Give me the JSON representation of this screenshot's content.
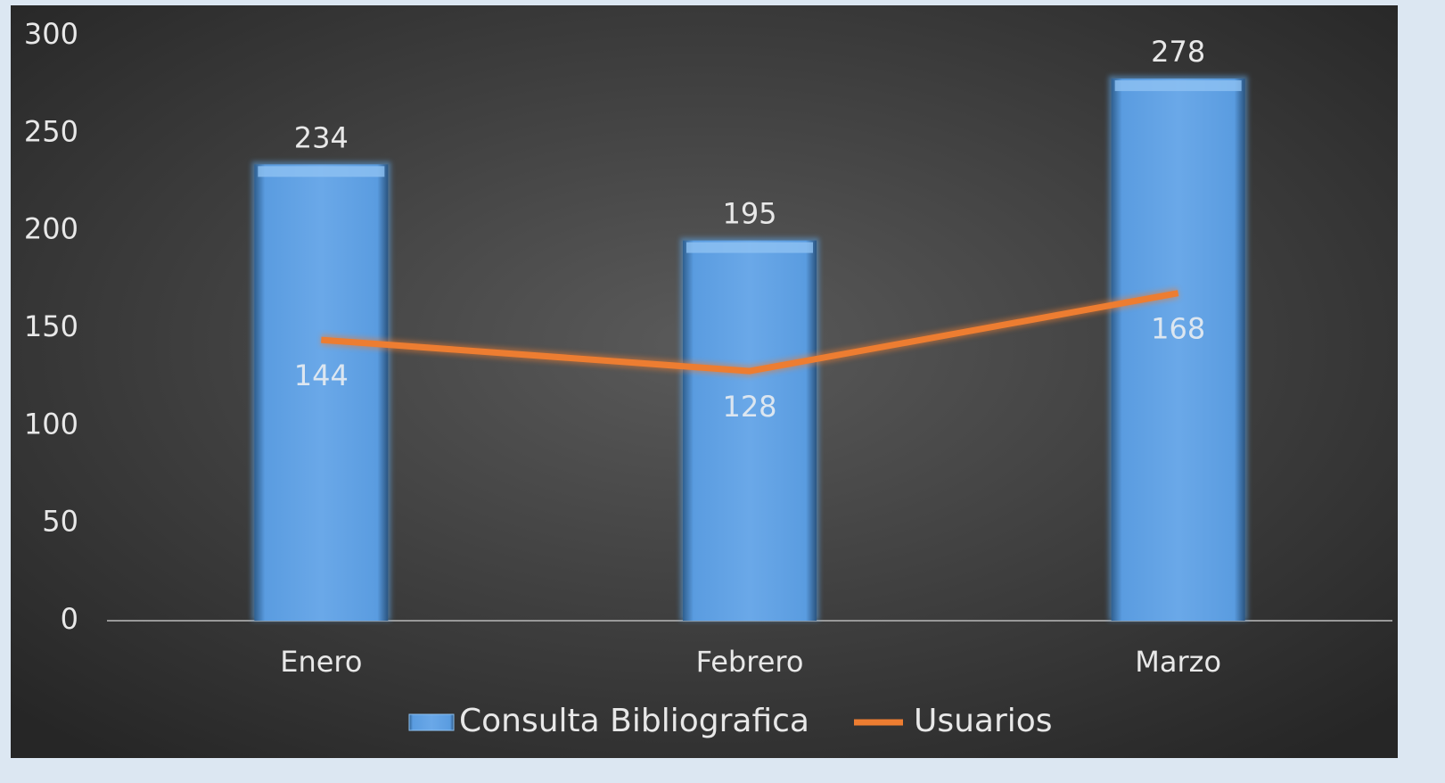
{
  "chart_data": {
    "type": "bar",
    "categories": [
      "Enero",
      "Febrero",
      "Marzo"
    ],
    "series": [
      {
        "name": "Consulta Bibliografica",
        "type": "bar",
        "color": "#5b9bd5",
        "values": [
          234,
          195,
          278
        ]
      },
      {
        "name": "Usuarios",
        "type": "line",
        "color": "#ed7d31",
        "values": [
          144,
          128,
          168
        ]
      }
    ],
    "ylim": [
      0,
      300
    ],
    "yticks": [
      0,
      50,
      100,
      150,
      200,
      250,
      300
    ],
    "grid": false,
    "legend": "bottom"
  }
}
